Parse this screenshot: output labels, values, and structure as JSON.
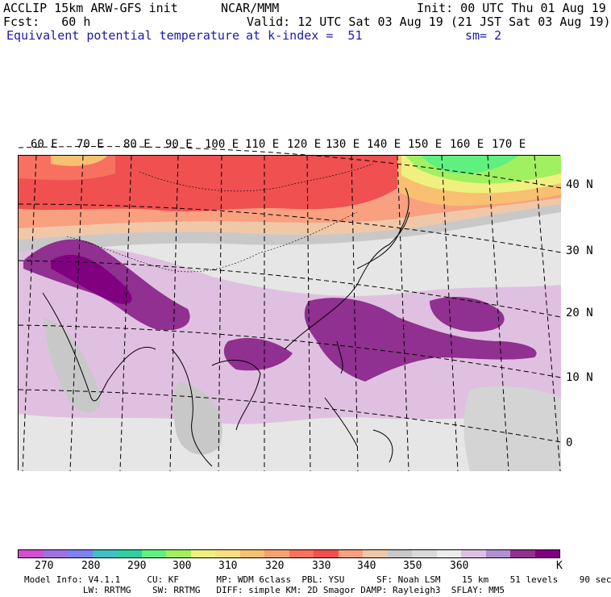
{
  "header": {
    "model": "ACCLIP 15km ARW-GFS init",
    "forecast": "Fcst:   60 h",
    "field": "Equivalent potential temperature",
    "center": "NCAR/MMM",
    "init": "Init: 00 UTC Thu 01 Aug 19",
    "valid": "Valid: 12 UTC Sat 03 Aug 19 (21 JST Sat 03 Aug 19)",
    "level": "at k-index =  51",
    "smoothing": "sm= 2"
  },
  "map": {
    "longitude_labels": [
      "60 E",
      "70 E",
      "80 E",
      "90 E",
      "100 E",
      "110 E",
      "120 E",
      "130 E",
      "140 E",
      "150 E",
      "160 E",
      "170 E"
    ],
    "latitude_labels": [
      "40 N",
      "30 N",
      "20 N",
      "10 N",
      "0"
    ]
  },
  "colorbar": {
    "unit": "K",
    "tick_labels": [
      "270",
      "280",
      "290",
      "300",
      "310",
      "320",
      "330",
      "340",
      "350",
      "360"
    ],
    "colors": [
      "#d050d0",
      "#a070e0",
      "#8080f0",
      "#40c0c0",
      "#30d0a0",
      "#60f080",
      "#a0f060",
      "#f0f080",
      "#f8e080",
      "#f8c070",
      "#f8a070",
      "#f87060",
      "#f05050",
      "#f8a080",
      "#f0c8a8",
      "#c8c8c8",
      "#dadada",
      "#ececec",
      "#e0c0e0",
      "#b090d0",
      "#903090",
      "#800080"
    ]
  },
  "footer": {
    "line1": "Model Info: V4.1.1     CU: KF       MP: WDM 6class  PBL: YSU      SF: Noah LSM    15 km    51 levels    90 sec",
    "line2": "           LW: RRTMG    SW: RRTMG   DIFF: simple KM: 2D Smagor DAMP: Rayleigh3  SFLAY: MM5"
  }
}
